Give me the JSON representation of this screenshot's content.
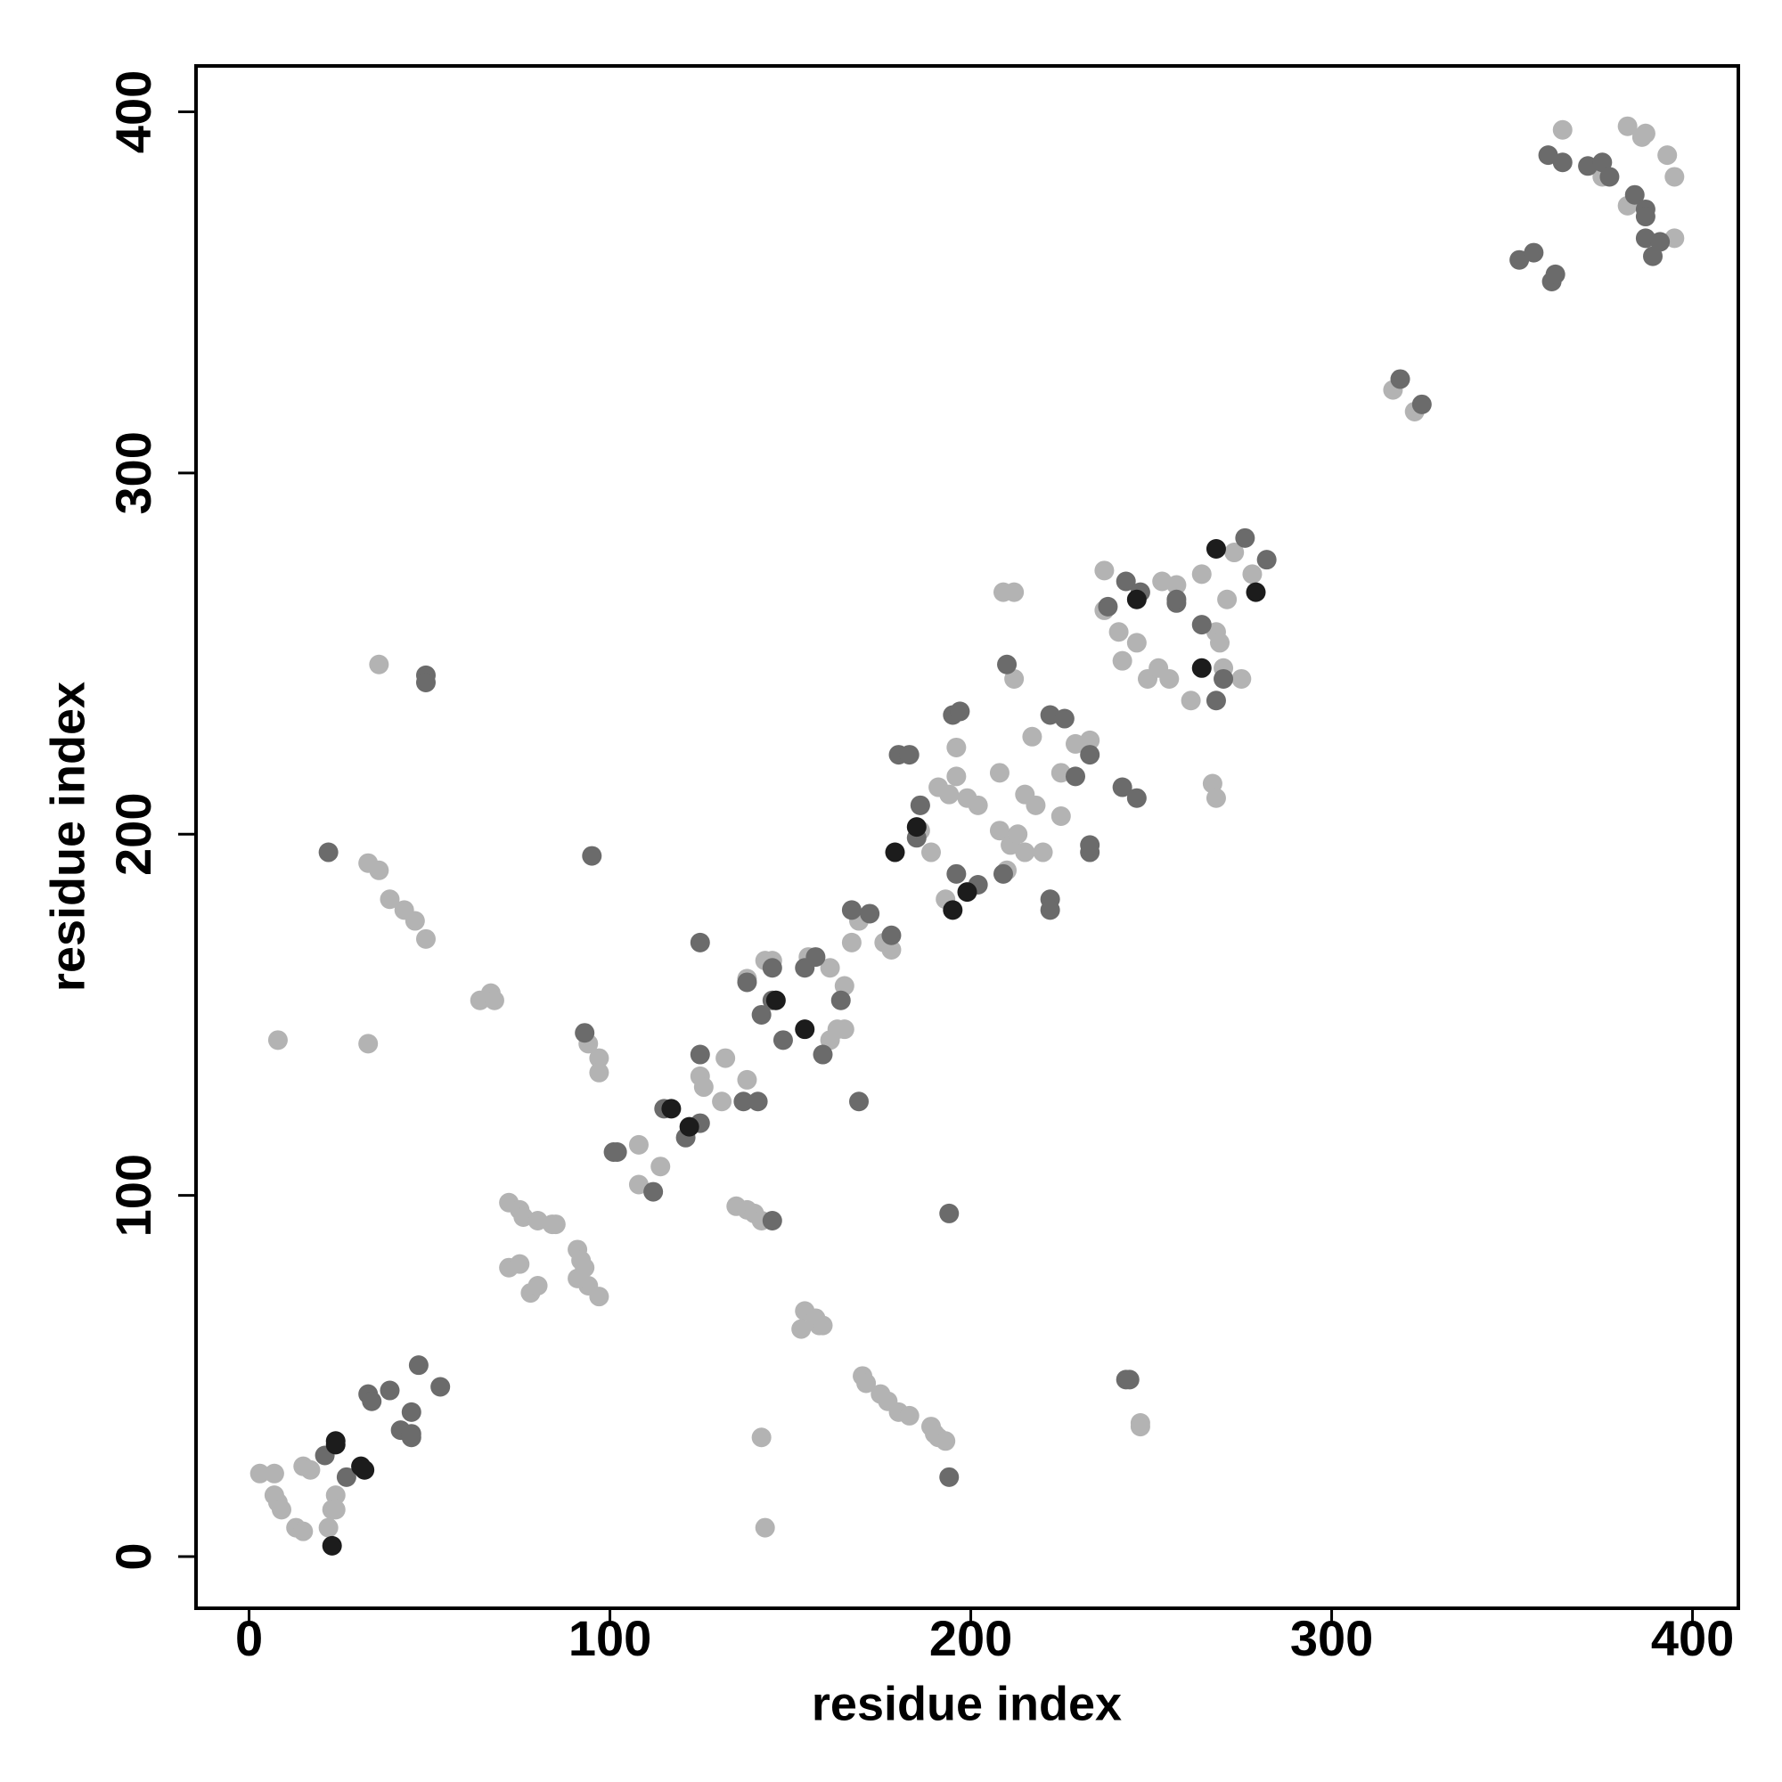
{
  "chart_data": {
    "type": "scatter",
    "xlabel": "residue index",
    "ylabel": "residue index",
    "xlim": [
      -14.7,
      412.7
    ],
    "ylim": [
      -14.3,
      412.7
    ],
    "xticks": [
      0,
      100,
      200,
      300,
      400
    ],
    "yticks": [
      0,
      100,
      200,
      300,
      400
    ],
    "grid": false,
    "series": [
      {
        "color": "#b3b3b3",
        "x": [
          3,
          7,
          8,
          7,
          9,
          13,
          15,
          15,
          17,
          24,
          23,
          24,
          22,
          142,
          143,
          170,
          171,
          175,
          177,
          180,
          183,
          189,
          191,
          190,
          193,
          247,
          247,
          154,
          157,
          158,
          153,
          159,
          135,
          138,
          140,
          142,
          72,
          75,
          76,
          80,
          84,
          85,
          72,
          75,
          78,
          80,
          91,
          92,
          93,
          94,
          97,
          91,
          108,
          108,
          114,
          132,
          125,
          138,
          131,
          126,
          138,
          143,
          145,
          161,
          165,
          163,
          165,
          167,
          169,
          176,
          178,
          155,
          161,
          186,
          191,
          196,
          194,
          199,
          202,
          196,
          208,
          211,
          215,
          213,
          210,
          208,
          217,
          215,
          218,
          225,
          229,
          233,
          220,
          225,
          189,
          186,
          193,
          209,
          212,
          212,
          237,
          237,
          241,
          242,
          246,
          249,
          252,
          255,
          253,
          257,
          261,
          264,
          268,
          269,
          273,
          275,
          278,
          267,
          268,
          271,
          270,
          317,
          323,
          364,
          382,
          387,
          386,
          393,
          395,
          382,
          375,
          395,
          8,
          33,
          36,
          33,
          36,
          39,
          43,
          46,
          49,
          64,
          67,
          68,
          94,
          97,
          97
        ],
        "y": [
          23,
          23,
          15,
          17,
          13,
          8,
          7,
          25,
          24,
          17,
          13,
          13,
          8,
          33,
          8,
          50,
          48,
          45,
          43,
          40,
          39,
          36,
          33,
          34,
          32,
          37,
          36,
          68,
          66,
          64,
          63,
          64,
          97,
          96,
          95,
          93,
          98,
          96,
          94,
          93,
          92,
          92,
          80,
          81,
          73,
          75,
          85,
          82,
          80,
          75,
          72,
          77,
          103,
          114,
          108,
          138,
          133,
          132,
          126,
          130,
          160,
          165,
          165,
          163,
          158,
          146,
          146,
          170,
          176,
          170,
          168,
          166,
          143,
          208,
          213,
          216,
          211,
          210,
          208,
          224,
          201,
          197,
          195,
          200,
          190,
          217,
          227,
          211,
          208,
          217,
          225,
          226,
          195,
          205,
          195,
          201,
          182,
          267,
          267,
          243,
          273,
          262,
          256,
          248,
          253,
          243,
          246,
          243,
          270,
          269,
          237,
          272,
          256,
          253,
          278,
          243,
          272,
          214,
          210,
          265,
          246,
          323,
          317,
          395,
          396,
          394,
          393,
          388,
          382,
          374,
          382,
          365,
          143,
          142,
          247,
          192,
          190,
          182,
          179,
          176,
          171,
          154,
          156,
          154,
          142,
          138,
          134
        ]
      },
      {
        "color": "#6b6b6b",
        "x": [
          21,
          27,
          33,
          39,
          34,
          45,
          42,
          45,
          47,
          53,
          45,
          243,
          244,
          194,
          194,
          145,
          101,
          102,
          112,
          115,
          121,
          125,
          125,
          125,
          137,
          141,
          169,
          138,
          142,
          145,
          145,
          154,
          157,
          148,
          159,
          164,
          167,
          172,
          178,
          195,
          197,
          186,
          180,
          183,
          196,
          202,
          209,
          210,
          222,
          222,
          222,
          226,
          233,
          233,
          233,
          229,
          242,
          246,
          185,
          238,
          243,
          247,
          257,
          264,
          268,
          270,
          276,
          282,
          257,
          319,
          325,
          352,
          356,
          361,
          362,
          360,
          364,
          371,
          375,
          377,
          384,
          387,
          387,
          391,
          389,
          387,
          22,
          49,
          49,
          95,
          93
        ],
        "y": [
          28,
          22,
          45,
          46,
          43,
          40,
          35,
          33,
          53,
          47,
          34,
          49,
          49,
          22,
          95,
          93,
          112,
          112,
          101,
          124,
          116,
          120,
          139,
          170,
          126,
          126,
          126,
          159,
          150,
          154,
          163,
          163,
          166,
          143,
          139,
          154,
          179,
          178,
          172,
          233,
          234,
          208,
          222,
          222,
          189,
          186,
          189,
          247,
          182,
          179,
          233,
          232,
          222,
          195,
          197,
          216,
          213,
          210,
          199,
          263,
          270,
          267,
          264,
          258,
          237,
          243,
          282,
          276,
          265,
          326,
          319,
          359,
          361,
          353,
          355,
          388,
          386,
          385,
          386,
          382,
          377,
          373,
          365,
          364,
          360,
          371,
          195,
          244,
          242,
          194,
          145
        ]
      },
      {
        "color": "#1c1c1c",
        "x": [
          23,
          24,
          24,
          31,
          32,
          117,
          122,
          146,
          154,
          179,
          195,
          199,
          185,
          268,
          279,
          246,
          264
        ],
        "y": [
          3,
          32,
          31,
          25,
          24,
          124,
          119,
          154,
          146,
          195,
          179,
          184,
          202,
          279,
          267,
          265,
          246
        ]
      }
    ]
  }
}
